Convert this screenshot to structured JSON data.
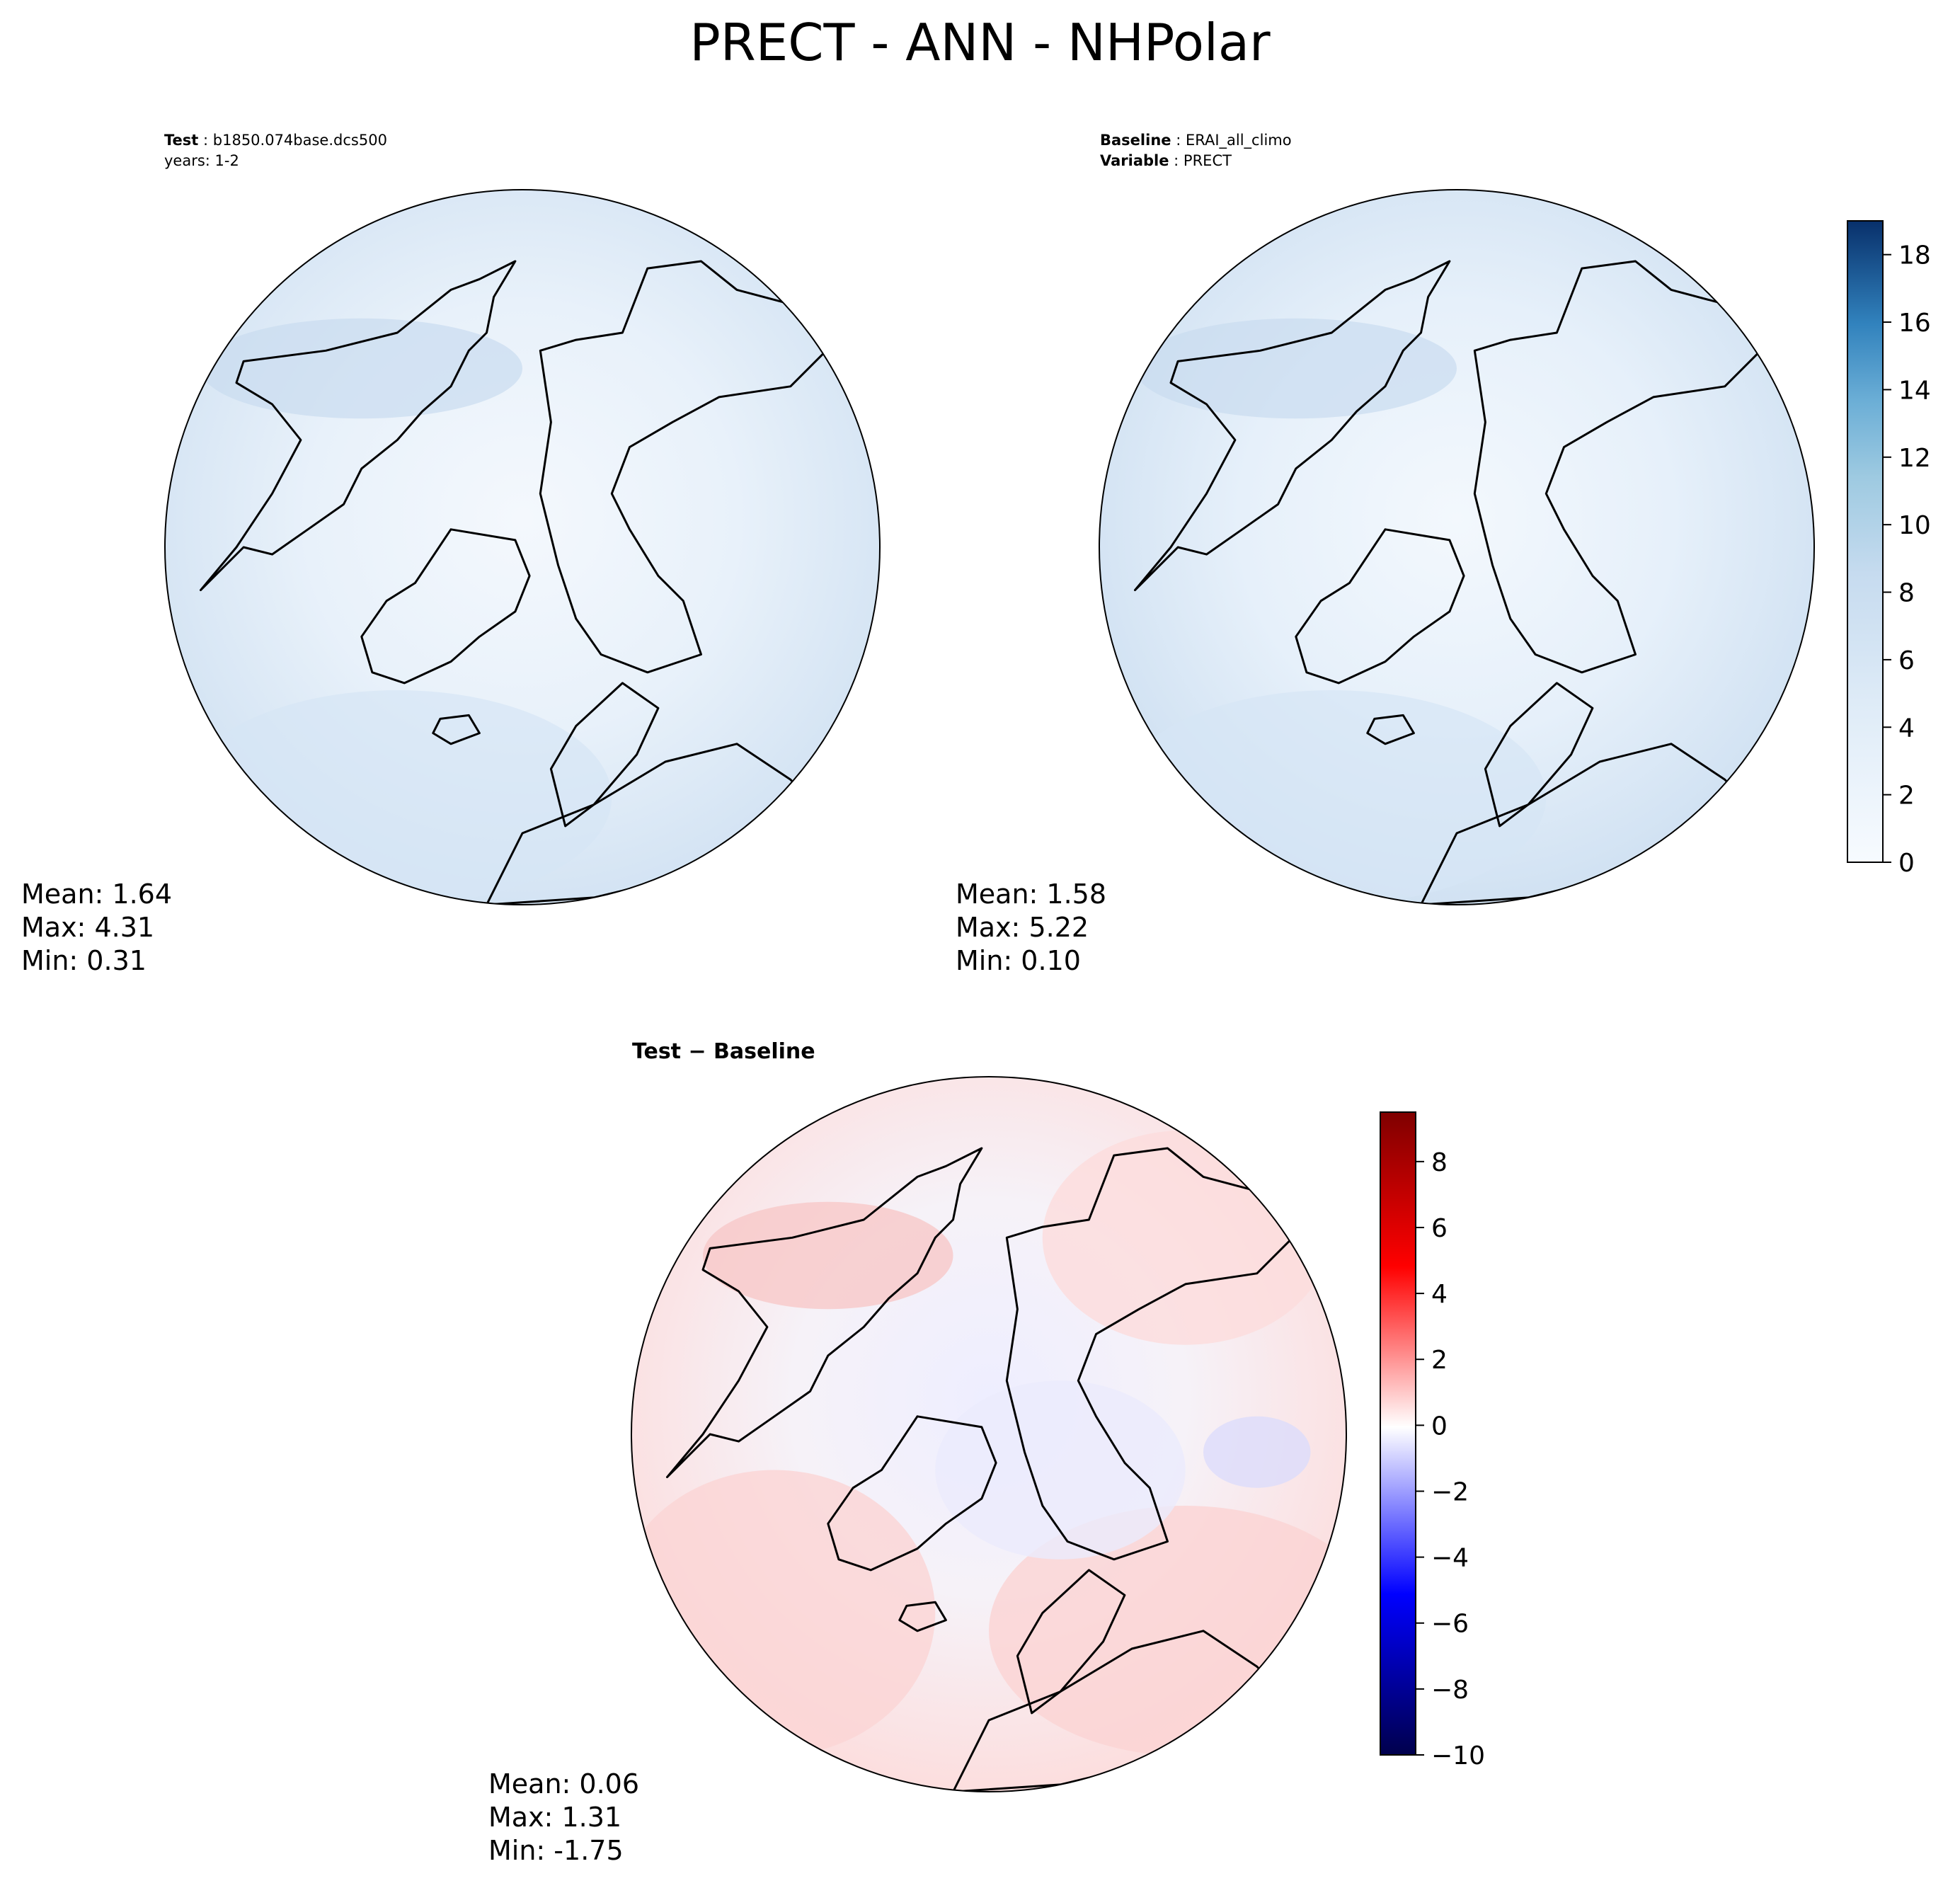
{
  "title": "PRECT - ANN - NHPolar",
  "colors": {
    "seq_light": "#f7fbff",
    "seq_dark": "#08306b",
    "div_low": "#00004c",
    "div_mid": "#ffffff",
    "div_high": "#7f0000",
    "coast": "#000000"
  },
  "panels": {
    "test": {
      "label": "Test",
      "name": "b1850.074base.dcs500",
      "years": "years: 1-2",
      "stats": {
        "mean": "Mean:  1.64",
        "max": "Max:  4.31",
        "min": "Min:  0.31"
      }
    },
    "baseline": {
      "label": "Baseline",
      "name": "ERAI_all_climo",
      "var_label": "Variable",
      "var_name": "PRECT",
      "stats": {
        "mean": "Mean:  1.58",
        "max": "Max:  5.22",
        "min": "Min:  0.10"
      }
    },
    "diff": {
      "title": "Test − Baseline",
      "stats": {
        "mean": "Mean:  0.06",
        "max": "Max:  1.31",
        "min": "Min: -1.75"
      }
    }
  },
  "chart_data": [
    {
      "type": "heatmap",
      "panel": "test",
      "projection": "north-polar-stereographic",
      "mean": 1.64,
      "max": 4.31,
      "min": 0.31,
      "colorbar": "Blues",
      "clim": [
        0,
        19
      ],
      "ticks": [
        0,
        2,
        4,
        6,
        8,
        10,
        12,
        14,
        16,
        18
      ]
    },
    {
      "type": "heatmap",
      "panel": "baseline",
      "projection": "north-polar-stereographic",
      "mean": 1.58,
      "max": 5.22,
      "min": 0.1,
      "colorbar": "Blues",
      "clim": [
        0,
        19
      ],
      "ticks": [
        0,
        2,
        4,
        6,
        8,
        10,
        12,
        14,
        16,
        18
      ],
      "tick_labels": [
        "0",
        "2",
        "4",
        "6",
        "8",
        "10",
        "12",
        "14",
        "16",
        "18"
      ]
    },
    {
      "type": "heatmap",
      "panel": "diff",
      "projection": "north-polar-stereographic",
      "mean": 0.06,
      "max": 1.31,
      "min": -1.75,
      "colorbar": "seismic",
      "clim": [
        -10,
        9.5
      ],
      "ticks": [
        -10,
        -8,
        -6,
        -4,
        -2,
        0,
        2,
        4,
        6,
        8
      ],
      "tick_labels": [
        "−10",
        "−8",
        "−6",
        "−4",
        "−2",
        "0",
        "2",
        "4",
        "6",
        "8"
      ]
    }
  ]
}
